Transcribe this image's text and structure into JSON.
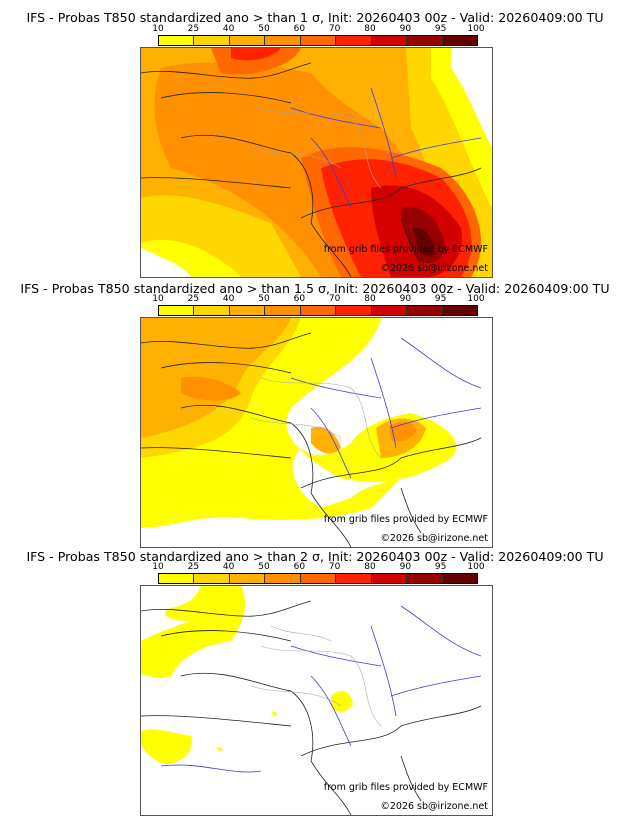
{
  "colorbar": {
    "labels": [
      "10",
      "25",
      "40",
      "50",
      "60",
      "70",
      "80",
      "90",
      "95",
      "100"
    ],
    "colors": [
      "#ffff00",
      "#ffd700",
      "#ffb000",
      "#ff9000",
      "#ff6800",
      "#ff2200",
      "#d40000",
      "#960000",
      "#640000"
    ]
  },
  "panels": [
    {
      "title": "IFS - Probas T850  standardized ano > than 1 σ, Init: 20260403 00z - Valid: 20260409:00 TU",
      "credit_source": "from grib files provided by ECMWF",
      "credit_copyright": "©2026 sb@irizone.net"
    },
    {
      "title": "IFS - Probas T850  standardized ano > than 1.5 σ, Init: 20260403 00z - Valid: 20260409:00 TU",
      "credit_source": "from grib files provided by ECMWF",
      "credit_copyright": "©2026 sb@irizone.net"
    },
    {
      "title": "IFS - Probas T850  standardized ano > than 2 σ, Init: 20260403 00z - Valid: 20260409:00 TU",
      "credit_source": "from grib files provided by ECMWF",
      "credit_copyright": "©2026 sb@irizone.net"
    }
  ],
  "colors": {
    "coastline": "#222222",
    "rivers": "#3a3ae0",
    "borders": "#aaaaaa"
  }
}
